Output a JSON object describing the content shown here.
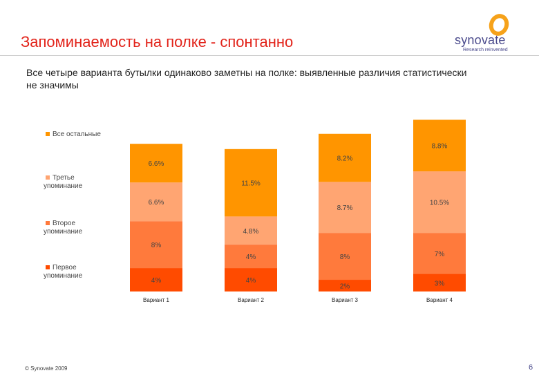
{
  "slide": {
    "title": "Запоминаемость на полке - спонтанно",
    "subtitle": "Все четыре варианта бутылки одинаково заметны на полке: выявленные различия статистически не значимы",
    "footer": "© Synovate 2009",
    "page_number": "6"
  },
  "logo": {
    "name": "synovate",
    "tagline": "Research reinvented"
  },
  "colors": {
    "title": "#e2231a",
    "logo_text": "#4a4a8c",
    "logo_ring": "#f6a21a"
  },
  "chart_data": {
    "type": "bar",
    "stacked": true,
    "categories": [
      "Вариант 1",
      "Вариант 2",
      "Вариант 3",
      "Вариант 4"
    ],
    "series": [
      {
        "name": "Первое упоминание",
        "color": "#ff4b00",
        "values": [
          4,
          4,
          2,
          3
        ],
        "labels": [
          "4%",
          "4%",
          "2%",
          "3%"
        ]
      },
      {
        "name": "Второе упоминание",
        "color": "#ff7a3c",
        "values": [
          8,
          4,
          8,
          7
        ],
        "labels": [
          "8%",
          "4%",
          "8%",
          "7%"
        ]
      },
      {
        "name": "Третье упоминание",
        "color": "#ffa572",
        "values": [
          6.6,
          4.8,
          8.7,
          10.5
        ],
        "labels": [
          "6.6%",
          "4.8%",
          "8.7%",
          "10.5%"
        ]
      },
      {
        "name": "Все остальные",
        "color": "#ff9500",
        "values": [
          6.6,
          11.5,
          8.2,
          8.8
        ],
        "labels": [
          "6.6%",
          "11.5%",
          "8.2%",
          "8.8%"
        ]
      }
    ],
    "legend_position": "left",
    "legend_order": [
      "Все остальные",
      "Третье упоминание",
      "Второе упоминание",
      "Первое упоминание"
    ],
    "title": "",
    "xlabel": "",
    "ylabel": "",
    "ylim": [
      0,
      33
    ]
  }
}
